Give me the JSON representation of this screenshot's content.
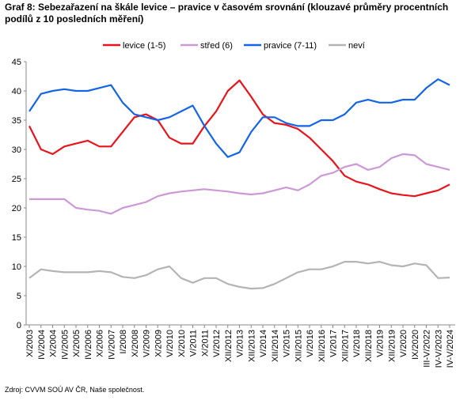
{
  "chart_data": {
    "type": "line",
    "title": "Graf 8: Sebezařazení na škále levice – pravice v časovém srovnání (klouzavé průměry procentních podílů z 10 posledních měření)",
    "source": "Zdroj: CVVM SOÚ AV ČR, Naše společnost.",
    "categories": [
      "X/2003",
      "IV/2004",
      "X/2004",
      "IV/2005",
      "X/2005",
      "IV/2006",
      "X/2006",
      "IV/2007",
      "I/2008",
      "X/2008",
      "V/2009",
      "X/2009",
      "V/2010",
      "X/2010",
      "V/2011",
      "X/2011",
      "V/2012",
      "XII/2012",
      "V/2013",
      "XII/2013",
      "V/2014",
      "XII/2014",
      "V/2015",
      "XII/2015",
      "V/2016",
      "XII/2016",
      "V/2017",
      "XII/2017",
      "V/2018",
      "XII/2018",
      "V/2019",
      "XII/2019",
      "V/2020",
      "IX/2020",
      "III-V/2022",
      "IV-V/2023",
      "IV-V/2024"
    ],
    "series": [
      {
        "name": "levice (1-5)",
        "color": "#e8141b",
        "values": [
          34,
          30,
          29.2,
          30.5,
          31,
          31.5,
          30.5,
          30.5,
          33,
          35.5,
          36,
          35,
          32,
          31,
          31,
          34,
          36.5,
          40,
          41.8,
          39,
          36,
          34.5,
          34.2,
          33.5,
          32,
          30,
          28,
          25.5,
          24.5,
          24,
          23.2,
          22.5,
          22.2,
          22,
          22.5,
          23,
          24
        ]
      },
      {
        "name": "střed (6)",
        "color": "#cc99d6",
        "values": [
          21.5,
          21.5,
          21.5,
          21.5,
          20,
          19.7,
          19.5,
          19,
          20,
          20.5,
          21,
          22,
          22.5,
          22.8,
          23,
          23.2,
          23,
          22.8,
          22.5,
          22.3,
          22.5,
          23,
          23.5,
          23,
          24,
          25.5,
          26,
          27,
          27.5,
          26.5,
          27,
          28.5,
          29.2,
          29,
          27.5,
          27,
          26.5
        ]
      },
      {
        "name": "pravice (7-11)",
        "color": "#1464e6",
        "values": [
          36.5,
          39.5,
          40,
          40.3,
          40,
          40,
          40.5,
          41,
          38,
          36,
          35.5,
          35,
          35.5,
          36.5,
          37.5,
          34,
          31,
          28.7,
          29.5,
          33,
          35.5,
          35.5,
          34.5,
          34,
          34,
          35,
          35,
          36,
          38,
          38.5,
          38,
          38,
          38.5,
          38.5,
          40.5,
          42,
          41
        ]
      },
      {
        "name": "neví",
        "color": "#b4b4b4",
        "values": [
          8,
          9.5,
          9.2,
          9,
          9,
          9,
          9.2,
          9,
          8.2,
          8,
          8.5,
          9.5,
          10,
          8,
          7.2,
          8,
          8,
          7,
          6.5,
          6.2,
          6.3,
          7,
          8,
          9,
          9.5,
          9.5,
          10,
          10.8,
          10.8,
          10.5,
          10.8,
          10.2,
          10,
          10.5,
          10.2,
          8,
          8.1
        ]
      }
    ],
    "ylim": [
      0,
      45
    ],
    "yticks": [
      0,
      5,
      10,
      15,
      20,
      25,
      30,
      35,
      40,
      45
    ],
    "grid": false,
    "legend": "top"
  }
}
